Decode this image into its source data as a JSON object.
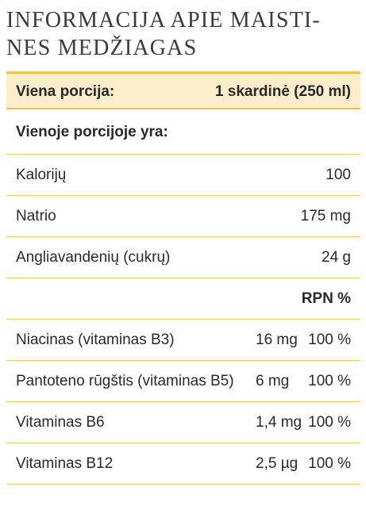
{
  "title": {
    "line1": "INFORMACIJA APIE MAISTI-",
    "line2": "NES MEDŽIAGAS"
  },
  "header": {
    "label": "Viena porcija:",
    "value": "1 skardinė (250 ml)"
  },
  "section_label": "Vienoje porcijoje yra:",
  "basic_rows": [
    {
      "label": "Kalorijų",
      "value": "100"
    },
    {
      "label": "Natrio",
      "value": "175 mg"
    },
    {
      "label": "Angliavandenių (cukrų)",
      "value": "24 g"
    }
  ],
  "rpn_header": "RPN %",
  "vitamin_rows": [
    {
      "label": "Niacinas (vitaminas B3)",
      "amount": "16 mg",
      "rpn": "100 %"
    },
    {
      "label": "Pantoteno rūgštis (vitaminas B5)",
      "amount": "6 mg",
      "rpn": "100 %"
    },
    {
      "label": "Vitaminas B6",
      "amount": "1,4 mg",
      "rpn": "100 %"
    },
    {
      "label": "Vitaminas B12",
      "amount": "2,5 µg",
      "rpn": "100 %"
    }
  ],
  "colors": {
    "accent": "#f2c14e",
    "header_bg": "#fdeecb",
    "text": "#2a2a2a"
  }
}
